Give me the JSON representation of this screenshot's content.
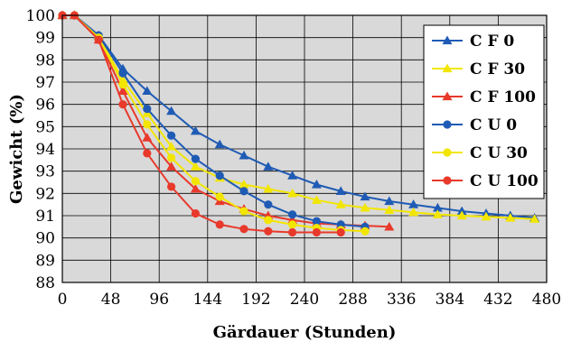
{
  "chart_data": {
    "type": "line",
    "title": "",
    "xlabel": "Gärdauer (Stunden)",
    "ylabel": "Gewicht (%)",
    "xlim": [
      0,
      480
    ],
    "ylim": [
      88,
      100
    ],
    "xticks": [
      0,
      48,
      96,
      144,
      192,
      240,
      288,
      336,
      384,
      432,
      480
    ],
    "yticks": [
      88,
      89,
      90,
      91,
      92,
      93,
      94,
      95,
      96,
      97,
      98,
      99,
      100
    ],
    "grid": true,
    "legend_position": "top-right",
    "series": [
      {
        "name": "C F 0",
        "color": "#1f5bb5",
        "marker": "triangle",
        "points": [
          [
            0,
            100
          ],
          [
            12,
            100
          ],
          [
            36,
            99.1
          ],
          [
            60,
            97.6
          ],
          [
            84,
            96.6
          ],
          [
            108,
            95.7
          ],
          [
            132,
            94.8
          ],
          [
            156,
            94.2
          ],
          [
            180,
            93.7
          ],
          [
            204,
            93.2
          ],
          [
            228,
            92.8
          ],
          [
            252,
            92.4
          ],
          [
            276,
            92.1
          ],
          [
            300,
            91.85
          ],
          [
            324,
            91.65
          ],
          [
            348,
            91.5
          ],
          [
            372,
            91.35
          ],
          [
            396,
            91.2
          ],
          [
            420,
            91.1
          ],
          [
            444,
            91.0
          ],
          [
            468,
            90.9
          ]
        ]
      },
      {
        "name": "C F 30",
        "color": "#f2e600",
        "marker": "triangle",
        "points": [
          [
            0,
            100
          ],
          [
            12,
            100
          ],
          [
            36,
            99.05
          ],
          [
            60,
            97.1
          ],
          [
            84,
            95.6
          ],
          [
            108,
            94.1
          ],
          [
            132,
            93.2
          ],
          [
            156,
            92.7
          ],
          [
            180,
            92.4
          ],
          [
            204,
            92.2
          ],
          [
            228,
            92.0
          ],
          [
            252,
            91.7
          ],
          [
            276,
            91.5
          ],
          [
            300,
            91.35
          ],
          [
            324,
            91.25
          ],
          [
            348,
            91.15
          ],
          [
            372,
            91.05
          ],
          [
            396,
            91.0
          ],
          [
            420,
            90.95
          ],
          [
            444,
            90.9
          ],
          [
            468,
            90.85
          ]
        ]
      },
      {
        "name": "C F 100",
        "color": "#e8392b",
        "marker": "triangle",
        "points": [
          [
            0,
            100
          ],
          [
            12,
            100
          ],
          [
            36,
            98.9
          ],
          [
            60,
            96.6
          ],
          [
            84,
            94.5
          ],
          [
            108,
            93.2
          ],
          [
            132,
            92.2
          ],
          [
            156,
            91.65
          ],
          [
            180,
            91.3
          ],
          [
            204,
            91.0
          ],
          [
            228,
            90.8
          ],
          [
            252,
            90.65
          ],
          [
            276,
            90.6
          ],
          [
            300,
            90.55
          ],
          [
            324,
            90.5
          ]
        ]
      },
      {
        "name": "C U 0",
        "color": "#1f5bb5",
        "marker": "circle",
        "points": [
          [
            0,
            100
          ],
          [
            12,
            100
          ],
          [
            36,
            99.1
          ],
          [
            60,
            97.4
          ],
          [
            84,
            95.8
          ],
          [
            108,
            94.6
          ],
          [
            132,
            93.55
          ],
          [
            156,
            92.8
          ],
          [
            180,
            92.1
          ],
          [
            204,
            91.5
          ],
          [
            228,
            91.05
          ],
          [
            252,
            90.75
          ],
          [
            276,
            90.6
          ],
          [
            300,
            90.5
          ]
        ]
      },
      {
        "name": "C U 30",
        "color": "#f2e600",
        "marker": "circle",
        "points": [
          [
            0,
            100
          ],
          [
            12,
            100
          ],
          [
            36,
            99.0
          ],
          [
            60,
            96.9
          ],
          [
            84,
            95.1
          ],
          [
            108,
            93.6
          ],
          [
            132,
            92.55
          ],
          [
            156,
            91.85
          ],
          [
            180,
            91.2
          ],
          [
            204,
            90.8
          ],
          [
            228,
            90.6
          ],
          [
            252,
            90.45
          ],
          [
            276,
            90.35
          ],
          [
            300,
            90.3
          ]
        ]
      },
      {
        "name": "C U 100",
        "color": "#e8392b",
        "marker": "circle",
        "points": [
          [
            0,
            100
          ],
          [
            12,
            100
          ],
          [
            36,
            98.9
          ],
          [
            60,
            96.0
          ],
          [
            84,
            93.8
          ],
          [
            108,
            92.3
          ],
          [
            132,
            91.1
          ],
          [
            156,
            90.6
          ],
          [
            180,
            90.4
          ],
          [
            204,
            90.3
          ],
          [
            228,
            90.25
          ],
          [
            252,
            90.25
          ],
          [
            276,
            90.25
          ]
        ]
      }
    ]
  }
}
